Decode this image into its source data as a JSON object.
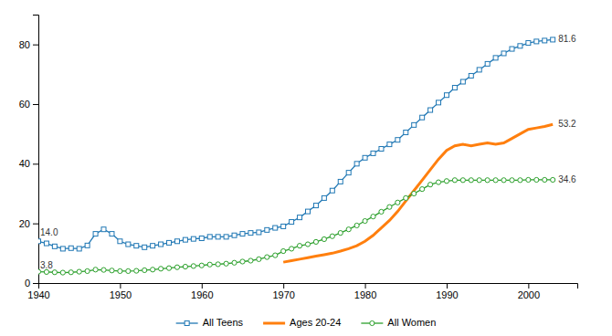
{
  "chart_data": {
    "type": "line",
    "x": [
      1940,
      1941,
      1942,
      1943,
      1944,
      1945,
      1946,
      1947,
      1948,
      1949,
      1950,
      1951,
      1952,
      1953,
      1954,
      1955,
      1956,
      1957,
      1958,
      1959,
      1960,
      1961,
      1962,
      1963,
      1964,
      1965,
      1966,
      1967,
      1968,
      1969,
      1970,
      1971,
      1972,
      1973,
      1974,
      1975,
      1976,
      1977,
      1978,
      1979,
      1980,
      1981,
      1982,
      1983,
      1984,
      1985,
      1986,
      1987,
      1988,
      1989,
      1990,
      1991,
      1992,
      1993,
      1994,
      1995,
      1996,
      1997,
      1998,
      1999,
      2000,
      2001,
      2002,
      2003
    ],
    "xlim": [
      1940,
      2006
    ],
    "ylim": [
      0,
      90
    ],
    "xticks": [
      1940,
      1950,
      1960,
      1970,
      1980,
      1990,
      2000
    ],
    "yticks": [
      0,
      20,
      40,
      60,
      80
    ],
    "grid": false,
    "legend": "bottom",
    "series": [
      {
        "name": "All Teens",
        "marker": "square",
        "values": [
          14.0,
          13.3,
          12.3,
          11.5,
          11.7,
          11.5,
          12.6,
          16.5,
          18.0,
          16.5,
          14.0,
          13.0,
          12.5,
          12.0,
          12.5,
          13.0,
          13.5,
          14.0,
          14.5,
          14.8,
          15.0,
          15.5,
          15.5,
          15.5,
          16.0,
          16.5,
          16.8,
          17.0,
          17.8,
          18.5,
          19.0,
          20.5,
          22.0,
          24.0,
          26.0,
          28.5,
          31.0,
          34.0,
          37.0,
          40.0,
          42.0,
          43.5,
          45.0,
          46.5,
          48.0,
          50.5,
          53.0,
          55.5,
          58.0,
          60.5,
          63.0,
          65.5,
          67.5,
          69.5,
          71.5,
          73.5,
          75.5,
          77.0,
          78.5,
          79.5,
          80.5,
          81.0,
          81.3,
          81.6
        ]
      },
      {
        "name": "Ages 20-24",
        "marker": "none",
        "values": [
          null,
          null,
          null,
          null,
          null,
          null,
          null,
          null,
          null,
          null,
          null,
          null,
          null,
          null,
          null,
          null,
          null,
          null,
          null,
          null,
          null,
          null,
          null,
          null,
          null,
          null,
          null,
          null,
          null,
          null,
          7.0,
          7.5,
          8.0,
          8.5,
          9.0,
          9.5,
          10.0,
          10.7,
          11.5,
          12.5,
          14.0,
          16.0,
          18.5,
          21.0,
          24.0,
          27.5,
          31.0,
          34.5,
          38.0,
          41.5,
          44.5,
          46.0,
          46.5,
          46.0,
          46.5,
          47.0,
          46.5,
          47.0,
          48.5,
          50.0,
          51.5,
          52.0,
          52.5,
          53.2
        ]
      },
      {
        "name": "All Women",
        "marker": "circle",
        "values": [
          3.8,
          3.7,
          3.6,
          3.5,
          3.6,
          3.8,
          4.0,
          4.5,
          4.4,
          4.2,
          4.0,
          4.0,
          4.1,
          4.3,
          4.5,
          4.8,
          5.0,
          5.3,
          5.5,
          5.7,
          5.9,
          6.2,
          6.3,
          6.5,
          6.8,
          7.2,
          7.5,
          8.0,
          8.7,
          9.3,
          10.7,
          11.5,
          12.5,
          13.0,
          13.8,
          14.7,
          15.7,
          16.8,
          18.0,
          19.3,
          20.8,
          22.3,
          23.9,
          25.5,
          27.0,
          28.5,
          30.0,
          31.5,
          33.0,
          33.8,
          34.2,
          34.5,
          34.5,
          34.5,
          34.5,
          34.5,
          34.5,
          34.5,
          34.5,
          34.5,
          34.6,
          34.6,
          34.6,
          34.6
        ]
      }
    ],
    "annotations": [
      {
        "text": "14.0",
        "x": 1940,
        "y": 14.8
      },
      {
        "text": "3.8",
        "x": 1940,
        "y": 3.8
      },
      {
        "text": "81.6",
        "x": 2003,
        "y": 81.6
      },
      {
        "text": "53.2",
        "x": 2003,
        "y": 53.2
      },
      {
        "text": "34.6",
        "x": 2003,
        "y": 34.6
      }
    ]
  }
}
